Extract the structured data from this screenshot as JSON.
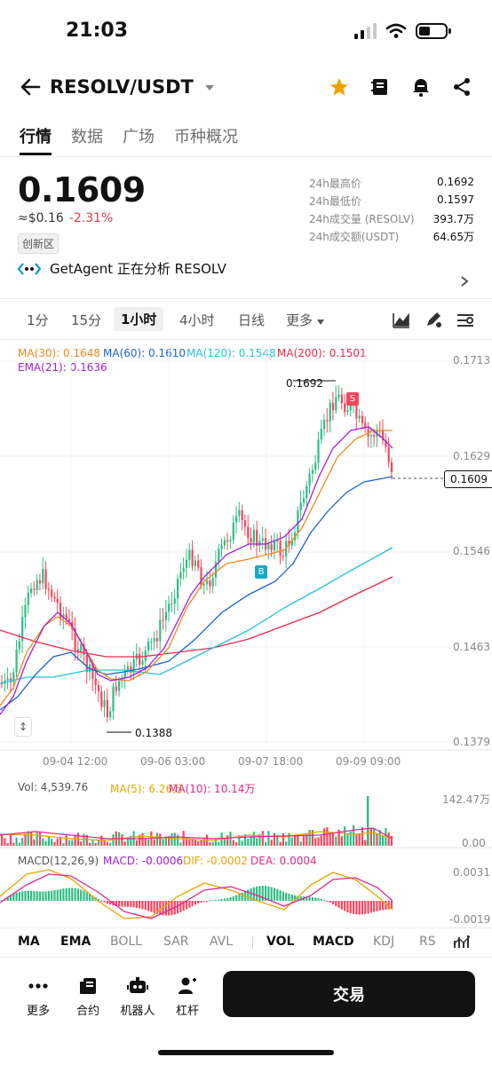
{
  "status": {
    "time": "21:03"
  },
  "header": {
    "pair": "RESOLV/USDT"
  },
  "tabs": [
    "行情",
    "数据",
    "广场",
    "币种概况"
  ],
  "price": {
    "last": "0.1609",
    "approx": "≈$0.16",
    "change": "-2.31%",
    "zone": "创新区"
  },
  "stats": [
    {
      "label": "24h最高价",
      "value": "0.1692"
    },
    {
      "label": "24h最低价",
      "value": "0.1597"
    },
    {
      "label": "24h成交量 (RESOLV)",
      "value": "393.7万"
    },
    {
      "label": "24h成交额(USDT)",
      "value": "64.65万"
    }
  ],
  "agent": {
    "text": "GetAgent 正在分析 RESOLV"
  },
  "timeframes": [
    "1分",
    "15分",
    "1小时",
    "4小时",
    "日线",
    "更多"
  ],
  "ma_legend": {
    "ma30": "MA(30): 0.1648",
    "ma60": "MA(60): 0.1610",
    "ma120": "MA(120): 0.1548",
    "ma200": "MA(200): 0.1501",
    "ema21": "EMA(21): 0.1636"
  },
  "chart_data": {
    "type": "candlestick",
    "price_axis": [
      "0.1713",
      "0.1629",
      "0.1546",
      "0.1463",
      "0.1379"
    ],
    "time_axis": [
      "09-04 12:00",
      "09-06 03:00",
      "09-07 18:00",
      "09-09 09:00"
    ],
    "high_label": "0.1692",
    "low_label": "0.1388",
    "current_price": "0.1609",
    "markers": [
      "S",
      "B"
    ],
    "colors": {
      "up": "#2ebd85",
      "down": "#f6465d",
      "ma30": "#f0891c",
      "ma60": "#1c63d8",
      "ma120": "#22c4d6",
      "ma200": "#e8294f",
      "ema21": "#a01fd8"
    }
  },
  "volume": {
    "vol": "Vol: 4,539.76",
    "ma5": "MA(5): 6.26万",
    "ma10": "MA(10): 10.14万",
    "axis_top": "142.47万",
    "axis_bottom": "0.00"
  },
  "macd": {
    "params": "MACD(12,26,9)",
    "macd": "MACD: -0.0006",
    "dif": "DIF: -0.0002",
    "dea": "DEA: 0.0004",
    "axis_top": "0.0031",
    "axis_bottom": "-0.0019"
  },
  "indicator_tabs": [
    "MA",
    "EMA",
    "BOLL",
    "SAR",
    "AVL",
    "VOL",
    "MACD",
    "KDJ",
    "RS"
  ],
  "footer": {
    "items": [
      "更多",
      "合约",
      "机器人",
      "杠杆"
    ],
    "trade": "交易"
  }
}
